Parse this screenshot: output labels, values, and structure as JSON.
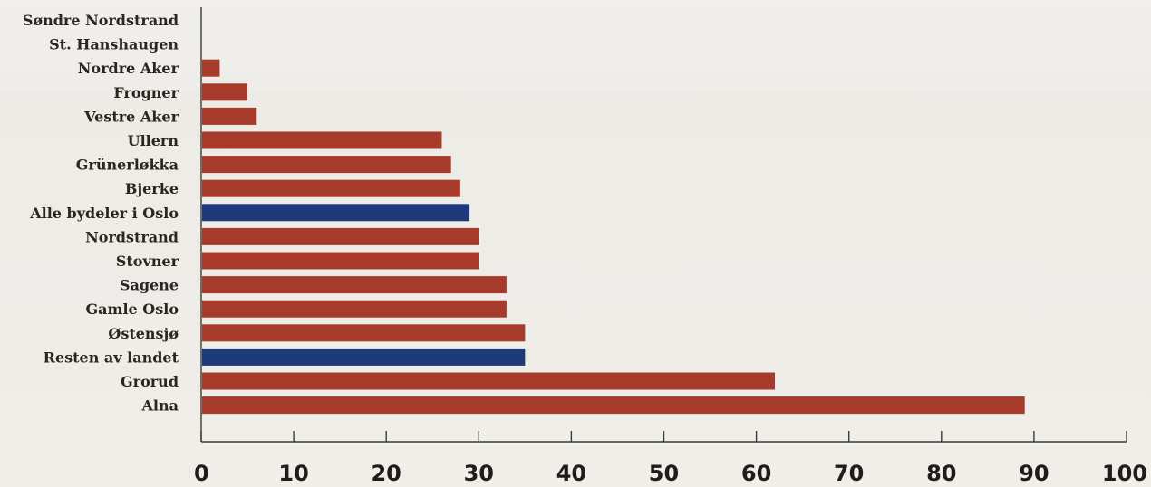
{
  "chart_data": {
    "type": "bar",
    "orientation": "horizontal",
    "categories": [
      "Søndre Nordstrand",
      "St. Hanshaugen",
      "Nordre Aker",
      "Frogner",
      "Vestre Aker",
      "Ullern",
      "Grünerløkka",
      "Bjerke",
      "Alle bydeler i Oslo",
      "Nordstrand",
      "Stovner",
      "Sagene",
      "Gamle Oslo",
      "Østensjø",
      "Resten av landet",
      "Grorud",
      "Alna"
    ],
    "values": [
      0,
      0,
      2,
      5,
      6,
      26,
      27,
      28,
      29,
      30,
      30,
      33,
      33,
      35,
      35,
      62,
      89
    ],
    "highlighted": [
      "Alle bydeler i Oslo",
      "Resten av landet"
    ],
    "title": "",
    "xlabel": "",
    "ylabel": "",
    "xlim": [
      0,
      100
    ],
    "xticks": [
      "0",
      "10",
      "20",
      "30",
      "40",
      "50",
      "60",
      "70",
      "80",
      "90",
      "100"
    ],
    "grid": false,
    "colors": {
      "default": "#a63a2b",
      "highlight": "#1f3a78",
      "axis": "#3a3a38"
    }
  }
}
